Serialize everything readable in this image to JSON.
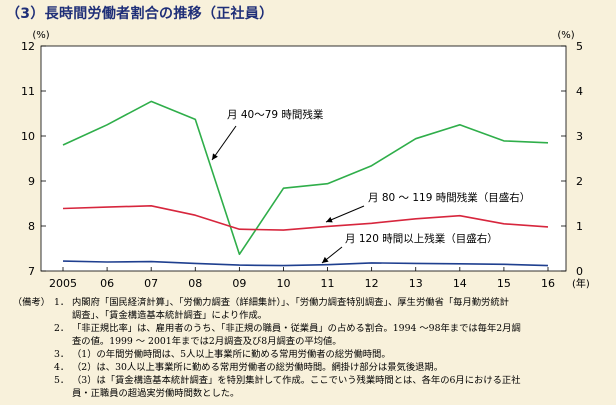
{
  "title": "（3）長時間労働者割合の推移（正社員）",
  "chart_data": {
    "type": "line",
    "x": [
      "2005",
      "06",
      "07",
      "08",
      "09",
      "10",
      "11",
      "12",
      "13",
      "14",
      "15",
      "16"
    ],
    "x_unit": "(年)",
    "y_left": {
      "unit": "(%)",
      "ylim": [
        7,
        12
      ],
      "ticks": [
        7,
        8,
        9,
        10,
        11,
        12
      ]
    },
    "y_right": {
      "unit": "(%)",
      "ylim": [
        0,
        5
      ],
      "ticks": [
        0,
        1,
        2,
        3,
        4,
        5
      ]
    },
    "series": [
      {
        "name": "月40～79時間残業",
        "axis": "left",
        "color": "#2fae4a",
        "values": [
          9.8,
          10.25,
          10.77,
          10.37,
          7.37,
          8.84,
          8.94,
          9.34,
          9.94,
          10.25,
          9.89,
          9.85
        ]
      },
      {
        "name": "月80～119時間残業（目盛右）",
        "axis": "right",
        "color": "#d7263d",
        "values": [
          1.39,
          1.42,
          1.45,
          1.24,
          0.93,
          0.91,
          0.99,
          1.06,
          1.16,
          1.23,
          1.05,
          0.98
        ]
      },
      {
        "name": "月120時間以上残業（目盛右）",
        "axis": "right",
        "color": "#1f3f8f",
        "values": [
          0.22,
          0.2,
          0.21,
          0.17,
          0.13,
          0.12,
          0.14,
          0.18,
          0.17,
          0.16,
          0.15,
          0.12
        ]
      }
    ],
    "annotations": [
      {
        "text": "月 40～79 時間残業"
      },
      {
        "text": "月 80 ～ 119 時間残業（目盛右）"
      },
      {
        "text": "月 120 時間以上残業（目盛右）"
      }
    ],
    "grid": false
  },
  "notes": {
    "label": "（備考）",
    "items": [
      {
        "num": "1．",
        "text": "内閣府「国民経済計算」、「労働力調査（詳細集計）」、「労働力調査特別調査」、厚生労働省「毎月勤労統計\n調査」、「賃金構造基本統計調査」により作成。"
      },
      {
        "num": "2．",
        "text": "「非正規比率」は、雇用者のうち、「非正規の職員・従業員」の占める割合。1994 ～98年までは毎年2月調\n査の値。1999 ～ 2001年までは2月調査及び8月調査の平均値。"
      },
      {
        "num": "3．",
        "text": "（1）の年間労働時間は、5人以上事業所に勤める常用労働者の総労働時間。"
      },
      {
        "num": "4．",
        "text": "（2）は、30人以上事業所に勤める常用労働者の総労働時間。網掛け部分は景気後退期。"
      },
      {
        "num": "5．",
        "text": "（3）は「賃金構造基本統計調査」を特別集計して作成。ここでいう残業時間とは、各年の6月における正社\n員・正職員の超過実労働時間数とした。"
      }
    ]
  }
}
